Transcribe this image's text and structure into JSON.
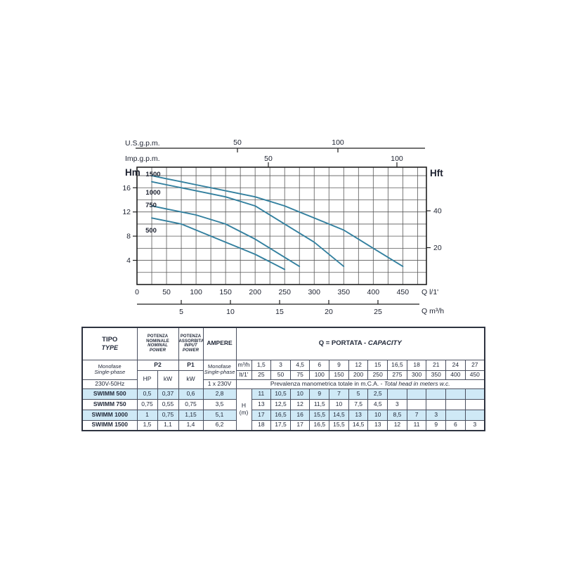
{
  "chart": {
    "colors": {
      "curve": "#33809f",
      "grid": "#585858",
      "frame": "#1f1f1f",
      "text": "#1d2230",
      "highlight_row": "#cfe9f6"
    },
    "axes": {
      "us_gpm": {
        "label": "U.S.g.p.m.",
        "ticks": [
          {
            "v": "50",
            "x": 338
          },
          {
            "v": "100",
            "x": 481
          }
        ]
      },
      "imp_gpm": {
        "label": "Imp.g.p.m.",
        "ticks": [
          {
            "v": "50",
            "x": 382
          },
          {
            "v": "100",
            "x": 565
          }
        ]
      },
      "y_left": {
        "label": "Hm",
        "ticks": [
          4,
          8,
          12,
          16
        ]
      },
      "y_right": {
        "label": "Hft",
        "ticks": [
          20,
          40
        ]
      },
      "x_bottom": {
        "label": "Q l/1'",
        "ticks": [
          0,
          50,
          100,
          150,
          200,
          250,
          300,
          350,
          400,
          450
        ]
      },
      "x_m3h": {
        "label": "Q m³/h",
        "ticks": [
          {
            "v": "5",
            "x": 258
          },
          {
            "v": "10",
            "x": 328
          },
          {
            "v": "15",
            "x": 398
          },
          {
            "v": "20",
            "x": 468
          },
          {
            "v": "25",
            "x": 538
          }
        ]
      }
    }
  },
  "chart_data": {
    "type": "line",
    "title": "Pump performance curves",
    "xlabel": "Q l/1'",
    "xlabel_secondary": "Q m³/h",
    "ylabel_left": "Hm",
    "ylabel_right": "Hft",
    "x_lpm": [
      25,
      50,
      75,
      100,
      150,
      200,
      250,
      275,
      300,
      350,
      400,
      450
    ],
    "xlim_lpm": [
      0,
      490
    ],
    "ylim_m": [
      0,
      19.4
    ],
    "grid": true,
    "series": [
      {
        "name": "1500",
        "values": [
          18,
          17.5,
          17,
          16.5,
          15.5,
          14.5,
          13,
          12,
          11,
          9,
          6,
          3
        ]
      },
      {
        "name": "1000",
        "values": [
          17,
          16.5,
          16,
          15.5,
          14.5,
          13,
          10,
          8.5,
          7,
          3
        ]
      },
      {
        "name": "750",
        "values": [
          13,
          12.5,
          12,
          11.5,
          10,
          7.5,
          4.5,
          3
        ]
      },
      {
        "name": "500",
        "values": [
          11,
          10.5,
          10,
          9,
          7,
          5,
          2.5
        ]
      }
    ]
  },
  "table": {
    "header": {
      "tipo": "TIPO",
      "type": "TYPE",
      "pn1": "POTENZA",
      "pn2": "NOMINALE",
      "pn3": "NOMINAL",
      "pn4": "POWER",
      "pa1": "POTENZA",
      "pa2": "ASSORBITA",
      "pa3": "INPUT",
      "pa4": "POWER",
      "ampere": "AMPERE",
      "q_portata": "Q = PORTATA - ",
      "capacity": "CAPACITY",
      "monofase": "Monofase",
      "single_phase": "Single-phase",
      "voltage": "230V-50Hz",
      "p2": "P2",
      "p1": "P1",
      "hp": "HP",
      "kw": "kW",
      "kw_p1": "kW",
      "amp_monofase": "Monofase",
      "amp_single_phase": "Single-phase",
      "amp_voltage": "1 x 230V",
      "m3h_unit": "m³/h",
      "lt_unit": "lt/1'",
      "h_label": "H",
      "h_unit": "(m)",
      "prev_it": "Prevalenza manometrica totale in m.C.A. - ",
      "prev_en": "Total head in meters w.c."
    },
    "capacity_m3h": [
      "1,5",
      "3",
      "4,5",
      "6",
      "9",
      "12",
      "15",
      "16,5",
      "18",
      "21",
      "24",
      "27"
    ],
    "capacity_lt": [
      "25",
      "50",
      "75",
      "100",
      "150",
      "200",
      "250",
      "275",
      "300",
      "350",
      "400",
      "450"
    ],
    "rows": [
      {
        "model": "SWIMM 500",
        "hp": "0,5",
        "kw": "0,37",
        "p1": "0,6",
        "amp": "2,8",
        "highlight": true,
        "heads": [
          "11",
          "10,5",
          "10",
          "9",
          "7",
          "5",
          "2,5",
          "",
          "",
          "",
          "",
          ""
        ]
      },
      {
        "model": "SWIMM 750",
        "hp": "0,75",
        "kw": "0,55",
        "p1": "0,75",
        "amp": "3,5",
        "highlight": false,
        "heads": [
          "13",
          "12,5",
          "12",
          "11,5",
          "10",
          "7,5",
          "4,5",
          "3",
          "",
          "",
          "",
          ""
        ]
      },
      {
        "model": "SWIMM 1000",
        "hp": "1",
        "kw": "0,75",
        "p1": "1,15",
        "amp": "5,1",
        "highlight": true,
        "heads": [
          "17",
          "16,5",
          "16",
          "15,5",
          "14,5",
          "13",
          "10",
          "8,5",
          "7",
          "3",
          "",
          ""
        ]
      },
      {
        "model": "SWIMM 1500",
        "hp": "1,5",
        "kw": "1,1",
        "p1": "1,4",
        "amp": "6,2",
        "highlight": false,
        "heads": [
          "18",
          "17,5",
          "17",
          "16,5",
          "15,5",
          "14,5",
          "13",
          "12",
          "11",
          "9",
          "6",
          "3"
        ]
      }
    ]
  }
}
